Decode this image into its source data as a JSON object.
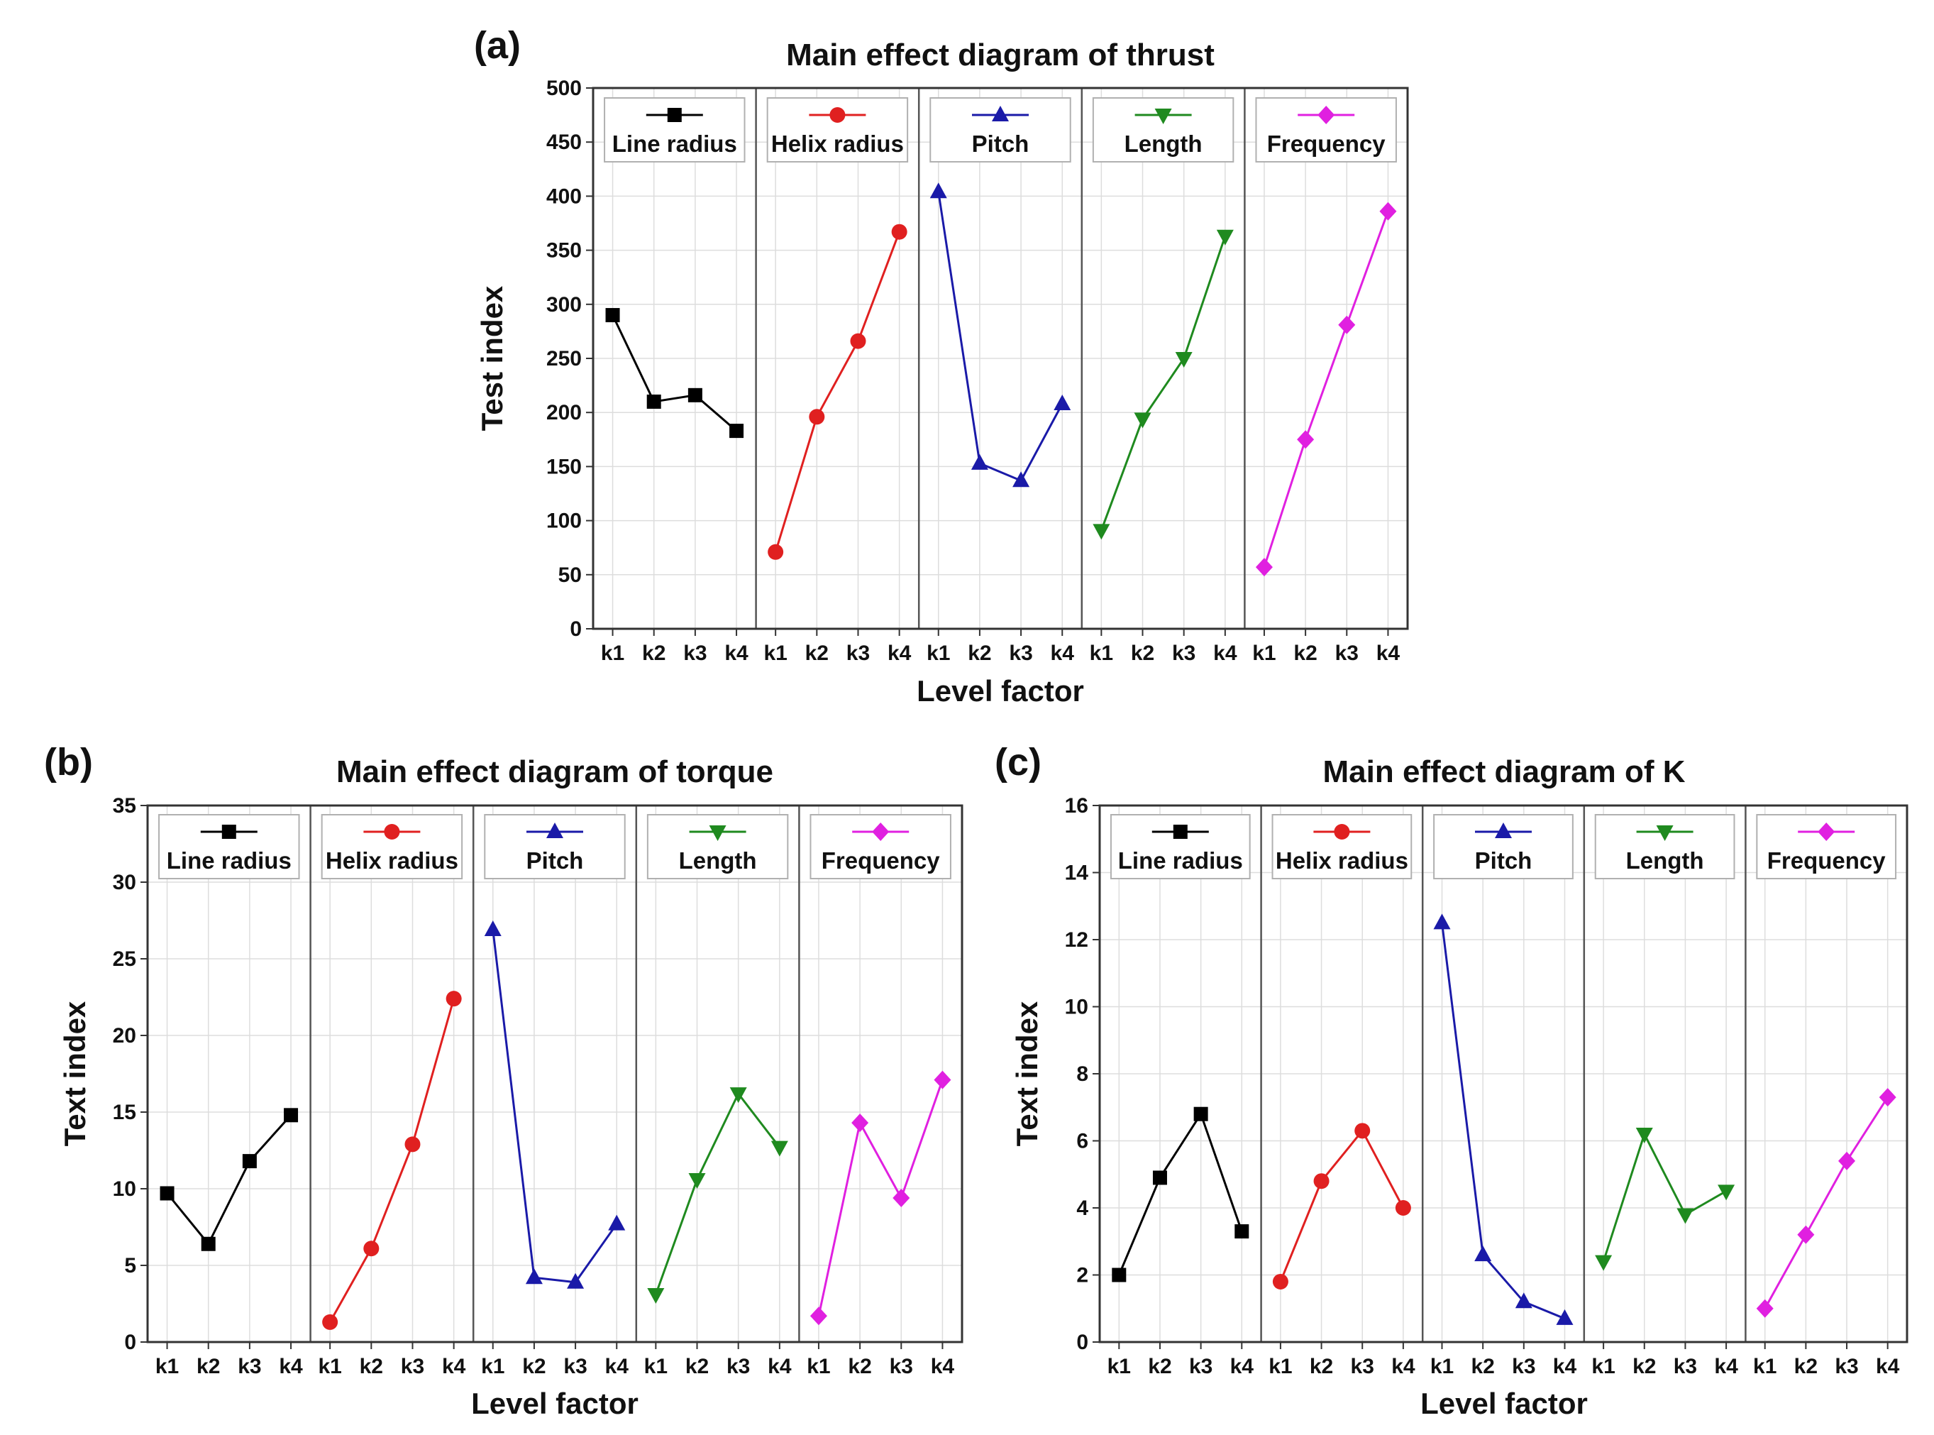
{
  "figure": {
    "panel_letters": [
      "(a)",
      "(b)",
      "(c)"
    ]
  },
  "chart_data": [
    {
      "type": "line",
      "panel": "(a)",
      "title": "Main effect diagram of thrust",
      "xlabel": "Level factor",
      "ylabel": "Test index",
      "ylim": [
        0,
        500
      ],
      "yticks": [
        0,
        50,
        100,
        150,
        200,
        250,
        300,
        350,
        400,
        450,
        500
      ],
      "categories": [
        "k1",
        "k2",
        "k3",
        "k4"
      ],
      "grid": true,
      "series": [
        {
          "name": "Line radius",
          "color": "#000000",
          "marker": "square",
          "values": [
            290,
            210,
            216,
            183
          ]
        },
        {
          "name": "Helix radius",
          "color": "#e02020",
          "marker": "circle",
          "values": [
            71,
            196,
            266,
            367
          ]
        },
        {
          "name": "Pitch",
          "color": "#1a1aa8",
          "marker": "triangle-up",
          "values": [
            404,
            153,
            137,
            208
          ]
        },
        {
          "name": "Length",
          "color": "#1f8a1f",
          "marker": "triangle-down",
          "values": [
            91,
            194,
            250,
            363
          ]
        },
        {
          "name": "Frequency",
          "color": "#e020e0",
          "marker": "diamond",
          "values": [
            57,
            175,
            281,
            386
          ]
        }
      ]
    },
    {
      "type": "line",
      "panel": "(b)",
      "title": "Main effect diagram of torque",
      "xlabel": "Level factor",
      "ylabel": "Text index",
      "ylim": [
        0,
        35
      ],
      "yticks": [
        0,
        5,
        10,
        15,
        20,
        25,
        30,
        35
      ],
      "categories": [
        "k1",
        "k2",
        "k3",
        "k4"
      ],
      "grid": true,
      "series": [
        {
          "name": "Line radius",
          "color": "#000000",
          "marker": "square",
          "values": [
            9.7,
            6.4,
            11.8,
            14.8
          ]
        },
        {
          "name": "Helix radius",
          "color": "#e02020",
          "marker": "circle",
          "values": [
            1.3,
            6.1,
            12.9,
            22.4
          ]
        },
        {
          "name": "Pitch",
          "color": "#1a1aa8",
          "marker": "triangle-up",
          "values": [
            26.9,
            4.2,
            3.9,
            7.7
          ]
        },
        {
          "name": "Length",
          "color": "#1f8a1f",
          "marker": "triangle-down",
          "values": [
            3.1,
            10.6,
            16.2,
            12.7
          ]
        },
        {
          "name": "Frequency",
          "color": "#e020e0",
          "marker": "diamond",
          "values": [
            1.7,
            14.3,
            9.4,
            17.1
          ]
        }
      ]
    },
    {
      "type": "line",
      "panel": "(c)",
      "title": "Main effect diagram of K",
      "xlabel": "Level factor",
      "ylabel": "Text index",
      "ylim": [
        0,
        16
      ],
      "yticks": [
        0,
        2,
        4,
        6,
        8,
        10,
        12,
        14,
        16
      ],
      "categories": [
        "k1",
        "k2",
        "k3",
        "k4"
      ],
      "grid": true,
      "series": [
        {
          "name": "Line radius",
          "color": "#000000",
          "marker": "square",
          "values": [
            2.0,
            4.9,
            6.8,
            3.3
          ]
        },
        {
          "name": "Helix radius",
          "color": "#e02020",
          "marker": "circle",
          "values": [
            1.8,
            4.8,
            6.3,
            4.0
          ]
        },
        {
          "name": "Pitch",
          "color": "#1a1aa8",
          "marker": "triangle-up",
          "values": [
            12.5,
            2.6,
            1.2,
            0.7
          ]
        },
        {
          "name": "Length",
          "color": "#1f8a1f",
          "marker": "triangle-down",
          "values": [
            2.4,
            6.2,
            3.8,
            4.5
          ]
        },
        {
          "name": "Frequency",
          "color": "#e020e0",
          "marker": "diamond",
          "values": [
            1.0,
            3.2,
            5.4,
            7.3
          ]
        }
      ]
    }
  ]
}
